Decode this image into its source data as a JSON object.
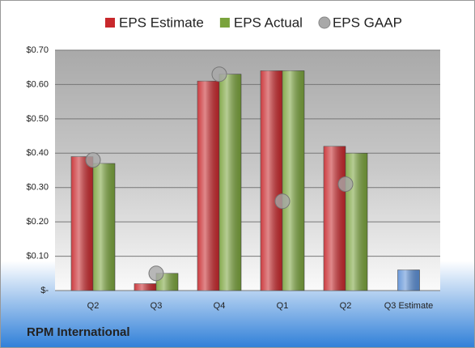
{
  "chart_data": {
    "type": "bar",
    "title": "RPM International",
    "categories": [
      "Q2",
      "Q3",
      "Q4",
      "Q1",
      "Q2",
      "Q3 Estimate"
    ],
    "series": [
      {
        "name": "EPS Estimate",
        "color": "#c8282c",
        "colors": [
          "#c8282c",
          "#c8282c",
          "#c8282c",
          "#c8282c",
          "#c8282c",
          "#5b8fd6"
        ],
        "values": [
          0.39,
          0.02,
          0.61,
          0.64,
          0.42,
          0.06
        ]
      },
      {
        "name": "EPS Actual",
        "color": "#7aa33c",
        "values": [
          0.37,
          0.05,
          0.63,
          0.64,
          0.4,
          null
        ]
      },
      {
        "name": "EPS GAAP",
        "color": "#a8a8a8",
        "type": "scatter",
        "values": [
          0.38,
          0.05,
          0.63,
          0.26,
          0.31,
          null
        ]
      }
    ],
    "ylim": [
      0,
      0.7
    ],
    "yticks": [
      {
        "value": 0,
        "label": "$-"
      },
      {
        "value": 0.1,
        "label": "$0.10"
      },
      {
        "value": 0.2,
        "label": "$0.20"
      },
      {
        "value": 0.3,
        "label": "$0.30"
      },
      {
        "value": 0.4,
        "label": "$0.40"
      },
      {
        "value": 0.5,
        "label": "$0.50"
      },
      {
        "value": 0.6,
        "label": "$0.60"
      },
      {
        "value": 0.7,
        "label": "$0.70"
      }
    ],
    "grid": true
  }
}
